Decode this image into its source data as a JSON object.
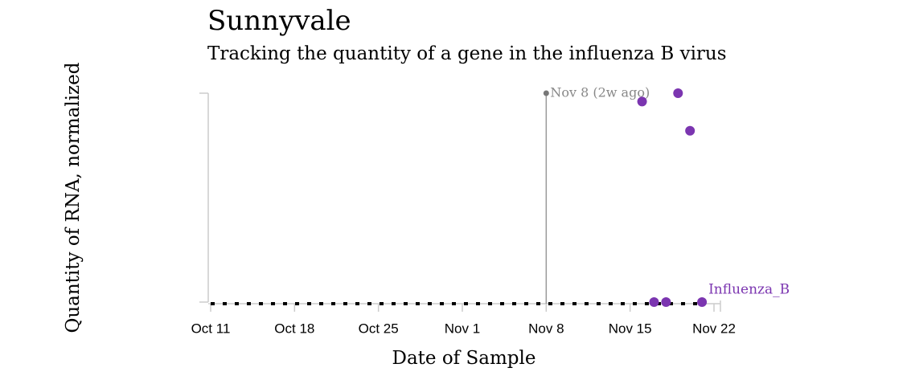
{
  "chart_data": {
    "type": "scatter",
    "title": "Sunnyvale",
    "subtitle": "Tracking the quantity of a gene in the influenza B virus",
    "x_label": "Date of Sample",
    "y_label": "Quantity of RNA, normalized",
    "xlim": [
      "Oct 11",
      "Nov 22"
    ],
    "xticks": [
      "Oct 11",
      "Oct 18",
      "Oct 25",
      "Nov 1",
      "Nov 8",
      "Nov 15",
      "Nov 22"
    ],
    "ylim": [
      0,
      1
    ],
    "annotation": {
      "x": "Nov 8",
      "label": "Nov 8 (2w ago)"
    },
    "series": [
      {
        "name": "Influenza_B",
        "color": "#7b35b0",
        "x": [
          "Nov 16",
          "Nov 19",
          "Nov 20",
          "Nov 17",
          "Nov 18",
          "Nov 21"
        ],
        "values": [
          0.96,
          1,
          0.82,
          0,
          0,
          0
        ]
      }
    ]
  }
}
